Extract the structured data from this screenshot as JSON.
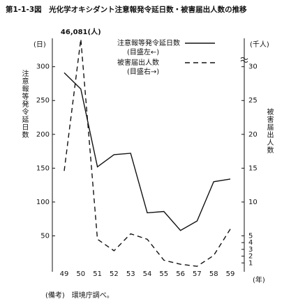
{
  "chart_data": {
    "type": "line",
    "title": "第1-1-3図　光化学オキシダント注意報発令延日数・被害届出人数の推移",
    "categories": [
      "49",
      "50",
      "51",
      "52",
      "53",
      "54",
      "55",
      "56",
      "57",
      "58",
      "59"
    ],
    "x_unit": "(年)",
    "y_unit": "(日)",
    "y2_unit": "(千人)",
    "y_label": "注意報等発令延日数",
    "y2_label": "被害届出人数",
    "ylim": [
      0,
      345
    ],
    "yticks": [
      50,
      100,
      150,
      200,
      250,
      300
    ],
    "y2lim": [
      0,
      46.5
    ],
    "y2ticks": [
      1,
      2,
      3,
      4,
      5,
      10,
      15,
      20,
      25,
      30
    ],
    "y2break": [
      31,
      43
    ],
    "series": [
      {
        "name": "注意報等発令延日数",
        "scale_note": "(目盛左←)",
        "color": "#111111",
        "dash": "none",
        "axis": "y",
        "values": [
          291,
          267,
          152,
          170,
          172,
          84,
          86,
          58,
          72,
          130,
          134
        ]
      },
      {
        "name": "被害届出人数",
        "scale_note": "(目盛右→)",
        "color": "#111111",
        "dash": "7 5",
        "axis": "y2",
        "values": [
          14.6,
          46.081,
          4.5,
          2.8,
          5.3,
          4.5,
          1.4,
          0.8,
          0.5,
          2.1,
          6.0
        ],
        "value_labels": [
          null,
          "46,081(人)",
          null,
          null,
          null,
          null,
          null,
          null,
          null,
          null,
          null
        ]
      }
    ],
    "note": "(備考)　環境庁調べ。"
  }
}
